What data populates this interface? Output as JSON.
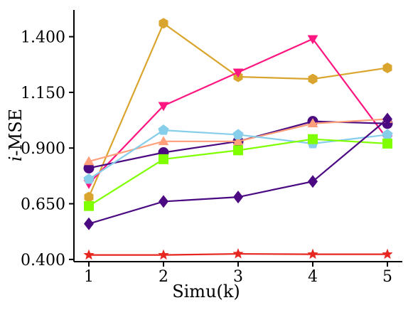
{
  "chart_data": {
    "type": "line",
    "xlabel": "Simu(k)",
    "ylabel": "i-MSE",
    "x": [
      1,
      2,
      3,
      4,
      5
    ],
    "xlim": [
      0.8,
      5.2
    ],
    "ylim": [
      0.39,
      1.52
    ],
    "yticks": [
      "0.400",
      "0.650",
      "0.900",
      "1.150",
      "1.400"
    ],
    "yticks_values": [
      0.4,
      0.65,
      0.9,
      1.15,
      1.4
    ],
    "xticks": [
      "1",
      "2",
      "3",
      "4",
      "5"
    ],
    "grid": false,
    "series": [
      {
        "color": "#DAA52E",
        "marker": "hexagon",
        "values": [
          0.68,
          1.46,
          1.22,
          1.21,
          1.26
        ]
      },
      {
        "color": "#FF1680",
        "marker": "triangle-down",
        "values": [
          0.74,
          1.09,
          1.24,
          1.39,
          0.94
        ]
      },
      {
        "color": "#4B0A82",
        "marker": "circle",
        "values": [
          0.81,
          0.88,
          0.93,
          1.02,
          1.01
        ]
      },
      {
        "color": "#FFA07A",
        "marker": "triangle-up",
        "values": [
          0.84,
          0.93,
          0.93,
          1.01,
          1.03
        ]
      },
      {
        "color": "#87CEEB",
        "marker": "pentagon",
        "values": [
          0.76,
          0.98,
          0.96,
          0.92,
          0.96
        ]
      },
      {
        "color": "#7FFF00",
        "marker": "square",
        "values": [
          0.64,
          0.85,
          0.89,
          0.94,
          0.92
        ]
      },
      {
        "color": "#4B0A82",
        "marker": "diamond",
        "values": [
          0.56,
          0.66,
          0.68,
          0.75,
          1.03
        ]
      },
      {
        "color": "#E6261F",
        "marker": "star",
        "values": [
          0.42,
          0.42,
          0.425,
          0.423,
          0.423
        ]
      }
    ]
  }
}
